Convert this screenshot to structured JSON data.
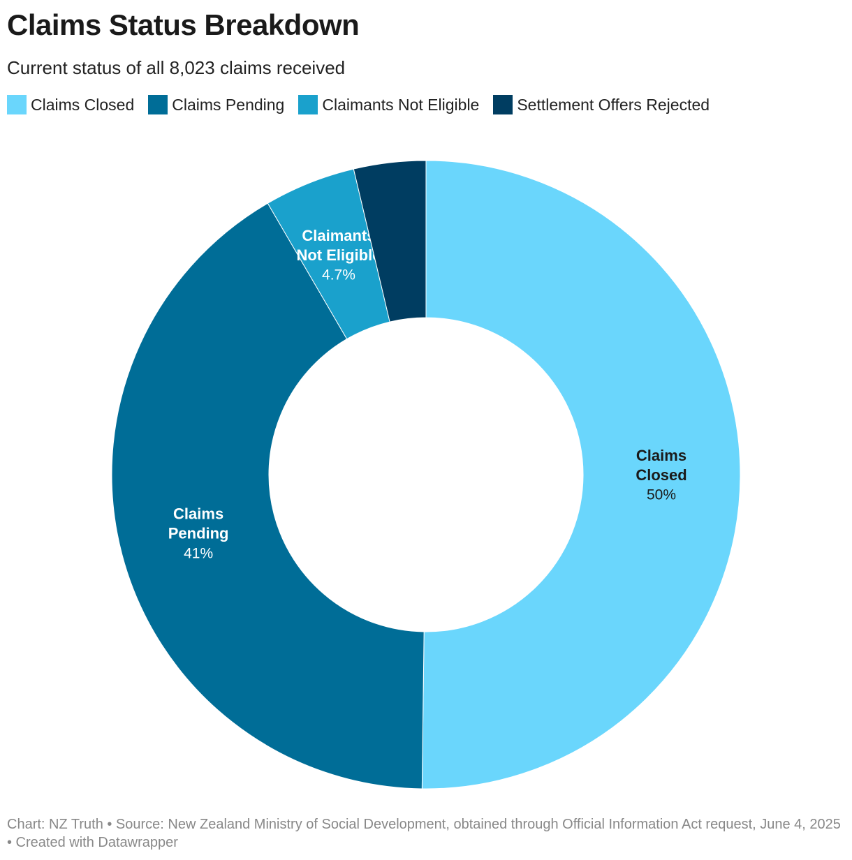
{
  "header": {
    "title": "Claims Status Breakdown",
    "subtitle": "Current status of all 8,023 claims received"
  },
  "legend": {
    "placement": "top-left",
    "items": [
      {
        "label": "Claims Closed",
        "color": "#6AD6FC"
      },
      {
        "label": "Claims Pending",
        "color": "#006D97"
      },
      {
        "label": "Claimants Not Eligible",
        "color": "#1AA1CC"
      },
      {
        "label": "Settlement Offers Rejected",
        "color": "#003D61"
      }
    ]
  },
  "chart_data": {
    "type": "pie",
    "variant": "donut",
    "slices": [
      {
        "name": "Claims Closed",
        "display_name": [
          "Claims",
          "Closed"
        ],
        "value": 50.2,
        "label": "50%",
        "color": "#6AD6FC",
        "label_color": "#1a1a1a"
      },
      {
        "name": "Claims Pending",
        "display_name": [
          "Claims",
          "Pending"
        ],
        "value": 41.4,
        "label": "41%",
        "color": "#006D97",
        "label_color": "#ffffff"
      },
      {
        "name": "Claimants Not Eligible",
        "display_name": [
          "Claimants",
          "Not Eligible"
        ],
        "value": 4.7,
        "label": "4.7%",
        "color": "#1AA1CC",
        "label_color": "#ffffff"
      },
      {
        "name": "Settlement Offers Rejected",
        "display_name": [],
        "value": 3.7,
        "label": "",
        "color": "#003D61",
        "label_color": "#ffffff"
      }
    ]
  },
  "footer": {
    "text": "Chart: NZ Truth • Source: New Zealand Ministry of Social Development, obtained through Official Information Act request, June 4, 2025 • Created with Datawrapper"
  }
}
